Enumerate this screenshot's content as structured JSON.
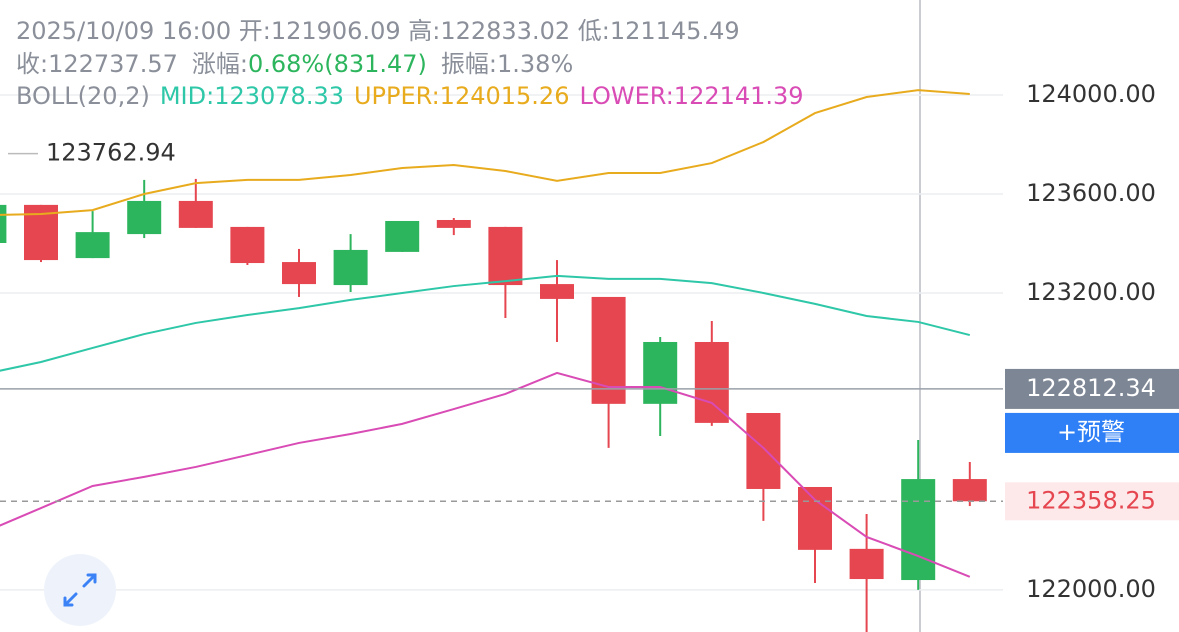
{
  "header": {
    "line1": "2025/10/09 16:00 开:121906.09 高:122833.02 低:121145.49",
    "close_label": "收:122737.57",
    "change_label": "涨幅:",
    "change_value": "0.68%(831.47)",
    "amplitude": "振幅:1.38%",
    "indicator": "BOLL(20,2)",
    "mid": "MID:123078.33",
    "upper": "UPPER:124015.26",
    "lower": "LOWER:122141.39"
  },
  "ui": {
    "alert_button": "+预警"
  },
  "chart_data": {
    "type": "candlestick",
    "open": [
      123402,
      123556,
      123341,
      123438,
      123572,
      123467,
      123325,
      123232,
      123366,
      123495,
      123467,
      123236,
      123184,
      122752,
      123002,
      122715,
      122416,
      122166,
      122040,
      122448
    ],
    "high": [
      123556,
      123556,
      123531,
      123657,
      123661,
      123467,
      123378,
      123438,
      123491,
      123503,
      123467,
      123333,
      123184,
      123022,
      123087,
      122715,
      122416,
      122307,
      122606,
      122517
    ],
    "low": [
      123402,
      123325,
      123341,
      123422,
      123463,
      123313,
      123184,
      123204,
      123366,
      123434,
      123099,
      123002,
      122574,
      122622,
      122663,
      122279,
      122028,
      121830,
      122000,
      122339
    ],
    "close": [
      123556,
      123333,
      123446,
      123572,
      123463,
      123321,
      123236,
      123374,
      123491,
      123463,
      123232,
      123176,
      122752,
      123002,
      122675,
      122408,
      122162,
      122044,
      122448,
      122358.25
    ],
    "up_color": "#2db55d",
    "down_color": "#e5464f",
    "series": [
      {
        "name": "MID",
        "color": "#2ec7a8",
        "values": [
          122877,
          122921,
          122978,
          123034,
          123079,
          123111,
          123139,
          123172,
          123200,
          123228,
          123248,
          123269,
          123257,
          123257,
          123240,
          123200,
          123156,
          123107,
          123083,
          123030
        ]
      },
      {
        "name": "UPPER",
        "color": "#e8ab1e",
        "values": [
          123515,
          123519,
          123535,
          123600,
          123644,
          123657,
          123657,
          123677,
          123705,
          123717,
          123693,
          123653,
          123685,
          123685,
          123725,
          123810,
          123927,
          123992,
          124020,
          124004
        ]
      },
      {
        "name": "LOWER",
        "color": "#d94bb5",
        "values": [
          122242,
          122331,
          122420,
          122457,
          122497,
          122545,
          122594,
          122630,
          122671,
          122731,
          122792,
          122877,
          122820,
          122820,
          122756,
          122574,
          122364,
          122214,
          122137,
          122053
        ]
      }
    ],
    "ylim": [
      121830,
      124384
    ],
    "yticks": [
      {
        "value": 124000,
        "label": "124000.00"
      },
      {
        "value": 123600,
        "label": "123600.00"
      },
      {
        "value": 123200,
        "label": "123200.00"
      },
      {
        "value": 122000,
        "label": "122000.00"
      }
    ],
    "grid": true,
    "max_marker": 123762.94,
    "crosshair_price": 122812.34,
    "current_price": 122358.25
  }
}
